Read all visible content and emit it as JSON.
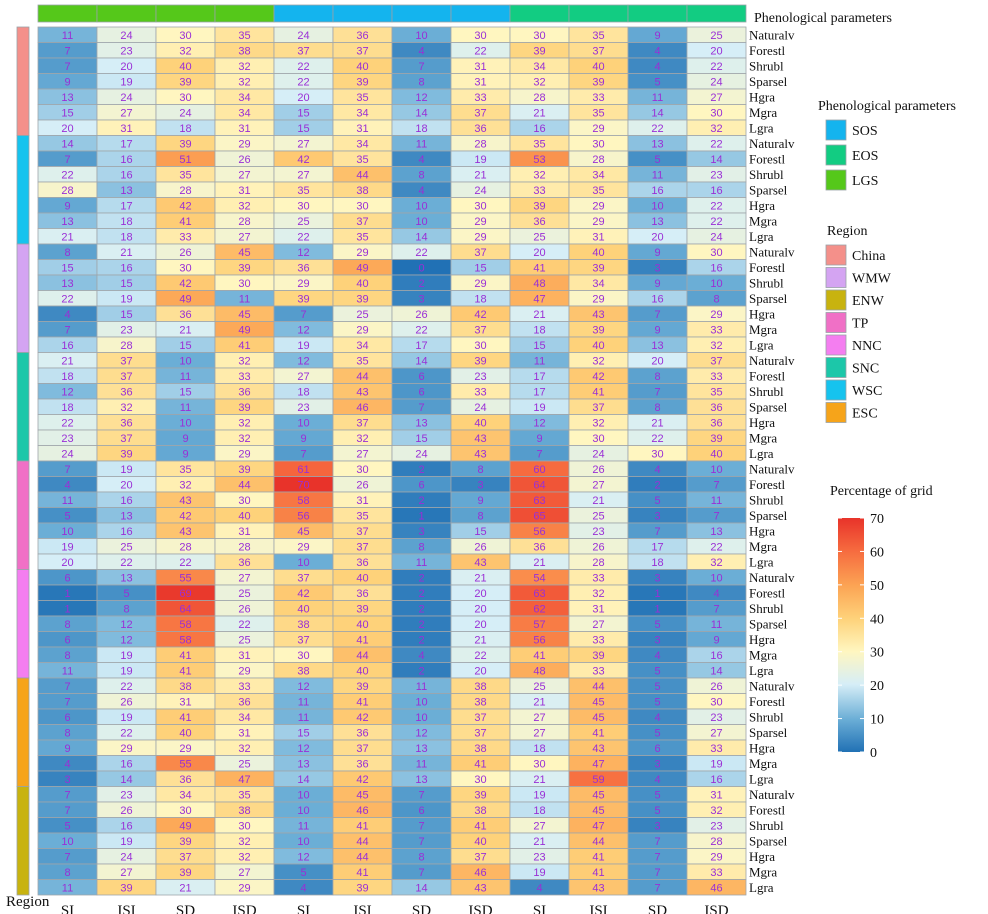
{
  "chart_data": {
    "type": "heatmap",
    "title": "",
    "columns": [
      "SI",
      "ISI",
      "SD",
      "ISD",
      "SI",
      "ISI",
      "SD",
      "ISD",
      "SI",
      "ISI",
      "SD",
      "ISD"
    ],
    "column_groups": [
      "LGS",
      "LGS",
      "LGS",
      "LGS",
      "SOS",
      "SOS",
      "SOS",
      "SOS",
      "EOS",
      "EOS",
      "EOS",
      "EOS"
    ],
    "row_labels": [
      "Naturalv",
      "Forestl",
      "Shrubl",
      "Sparsel",
      "Hgra",
      "Mgra",
      "Lgra"
    ],
    "x_axis_label": "Region",
    "top_bar_label": "Phenological parameters",
    "regions": [
      {
        "name": "China",
        "rows": [
          [
            11,
            24,
            30,
            35,
            24,
            36,
            10,
            30,
            30,
            35,
            9,
            25
          ],
          [
            7,
            23,
            32,
            38,
            37,
            37,
            4,
            22,
            39,
            37,
            4,
            20
          ],
          [
            7,
            20,
            40,
            32,
            22,
            40,
            7,
            31,
            34,
            40,
            4,
            22
          ],
          [
            9,
            19,
            39,
            32,
            22,
            39,
            8,
            31,
            32,
            39,
            5,
            24
          ],
          [
            13,
            24,
            30,
            34,
            20,
            35,
            12,
            33,
            28,
            33,
            11,
            27
          ],
          [
            15,
            27,
            24,
            34,
            15,
            34,
            14,
            37,
            21,
            35,
            14,
            30
          ],
          [
            20,
            31,
            18,
            31,
            15,
            31,
            18,
            36,
            16,
            29,
            22,
            32
          ]
        ]
      },
      {
        "name": "WSC",
        "rows": [
          [
            14,
            17,
            39,
            29,
            27,
            34,
            11,
            28,
            35,
            30,
            13,
            22
          ],
          [
            7,
            16,
            51,
            26,
            42,
            35,
            4,
            19,
            53,
            28,
            5,
            14
          ],
          [
            22,
            16,
            35,
            27,
            27,
            44,
            8,
            21,
            32,
            34,
            11,
            23
          ],
          [
            28,
            13,
            28,
            31,
            35,
            38,
            4,
            24,
            33,
            35,
            16,
            16
          ],
          [
            9,
            17,
            42,
            32,
            30,
            30,
            10,
            30,
            39,
            29,
            10,
            22
          ],
          [
            13,
            18,
            41,
            28,
            25,
            37,
            10,
            29,
            36,
            29,
            13,
            22
          ],
          [
            21,
            18,
            33,
            27,
            22,
            35,
            14,
            29,
            25,
            31,
            20,
            24
          ]
        ]
      },
      {
        "name": "WMW",
        "rows": [
          [
            8,
            21,
            26,
            45,
            12,
            29,
            22,
            37,
            20,
            40,
            9,
            30
          ],
          [
            15,
            16,
            30,
            39,
            36,
            49,
            0,
            15,
            41,
            39,
            3,
            16
          ],
          [
            13,
            15,
            42,
            30,
            29,
            40,
            2,
            29,
            48,
            34,
            9,
            10
          ],
          [
            22,
            19,
            49,
            11,
            39,
            39,
            3,
            18,
            47,
            29,
            16,
            8
          ],
          [
            4,
            15,
            36,
            45,
            7,
            25,
            26,
            42,
            21,
            43,
            7,
            29
          ],
          [
            7,
            23,
            21,
            49,
            12,
            29,
            22,
            37,
            18,
            39,
            9,
            33
          ],
          [
            16,
            28,
            15,
            41,
            19,
            34,
            17,
            30,
            15,
            40,
            13,
            32
          ]
        ]
      },
      {
        "name": "SNC",
        "rows": [
          [
            21,
            37,
            10,
            32,
            12,
            35,
            14,
            39,
            11,
            32,
            20,
            37
          ],
          [
            18,
            37,
            11,
            33,
            27,
            44,
            6,
            23,
            17,
            42,
            8,
            33
          ],
          [
            12,
            36,
            15,
            36,
            18,
            43,
            6,
            33,
            17,
            41,
            7,
            35
          ],
          [
            18,
            32,
            11,
            39,
            23,
            46,
            7,
            24,
            19,
            37,
            8,
            36
          ],
          [
            22,
            36,
            10,
            32,
            10,
            37,
            13,
            40,
            12,
            32,
            21,
            36
          ],
          [
            23,
            37,
            9,
            32,
            9,
            32,
            15,
            43,
            9,
            30,
            22,
            39
          ],
          [
            24,
            39,
            9,
            29,
            7,
            27,
            24,
            43,
            7,
            24,
            30,
            40
          ]
        ]
      },
      {
        "name": "TP",
        "rows": [
          [
            7,
            19,
            35,
            39,
            61,
            30,
            2,
            8,
            60,
            26,
            4,
            10
          ],
          [
            4,
            20,
            32,
            44,
            70,
            26,
            6,
            3,
            64,
            27,
            2,
            7
          ],
          [
            11,
            16,
            43,
            30,
            58,
            31,
            2,
            9,
            63,
            21,
            5,
            11
          ],
          [
            5,
            13,
            42,
            40,
            56,
            35,
            1,
            8,
            65,
            25,
            3,
            7
          ],
          [
            10,
            16,
            43,
            31,
            45,
            37,
            3,
            15,
            56,
            23,
            7,
            13
          ],
          [
            19,
            25,
            28,
            28,
            29,
            37,
            8,
            26,
            36,
            26,
            17,
            22
          ],
          [
            20,
            22,
            22,
            36,
            10,
            36,
            11,
            43,
            21,
            28,
            18,
            32
          ]
        ]
      },
      {
        "name": "NNC",
        "rows": [
          [
            6,
            13,
            55,
            27,
            37,
            40,
            2,
            21,
            54,
            33,
            3,
            10
          ],
          [
            1,
            5,
            69,
            25,
            42,
            36,
            2,
            20,
            63,
            32,
            1,
            4
          ],
          [
            1,
            8,
            64,
            26,
            40,
            39,
            2,
            20,
            62,
            31,
            1,
            7
          ],
          [
            8,
            12,
            58,
            22,
            38,
            40,
            2,
            20,
            57,
            27,
            5,
            11
          ],
          [
            6,
            12,
            58,
            25,
            37,
            41,
            2,
            21,
            56,
            33,
            3,
            9
          ],
          [
            8,
            19,
            41,
            31,
            30,
            44,
            4,
            22,
            41,
            39,
            4,
            16
          ],
          [
            11,
            19,
            41,
            29,
            38,
            40,
            2,
            20,
            48,
            33,
            5,
            14
          ]
        ]
      },
      {
        "name": "ESC",
        "rows": [
          [
            7,
            22,
            38,
            33,
            12,
            39,
            11,
            38,
            25,
            44,
            5,
            26
          ],
          [
            7,
            26,
            31,
            36,
            11,
            41,
            10,
            38,
            21,
            45,
            5,
            30
          ],
          [
            6,
            19,
            41,
            34,
            11,
            42,
            10,
            37,
            27,
            45,
            4,
            23
          ],
          [
            8,
            22,
            40,
            31,
            15,
            36,
            12,
            37,
            27,
            41,
            5,
            27
          ],
          [
            9,
            29,
            29,
            32,
            12,
            37,
            13,
            38,
            18,
            43,
            6,
            33
          ],
          [
            4,
            16,
            55,
            25,
            13,
            36,
            11,
            41,
            30,
            47,
            3,
            19
          ],
          [
            3,
            14,
            36,
            47,
            14,
            42,
            13,
            30,
            21,
            59,
            4,
            16
          ]
        ]
      },
      {
        "name": "ENW",
        "rows": [
          [
            7,
            23,
            34,
            35,
            10,
            45,
            7,
            39,
            19,
            45,
            5,
            31
          ],
          [
            7,
            26,
            30,
            38,
            10,
            46,
            6,
            38,
            18,
            45,
            5,
            32
          ],
          [
            5,
            16,
            49,
            30,
            11,
            41,
            7,
            41,
            27,
            47,
            3,
            23
          ],
          [
            10,
            19,
            39,
            32,
            10,
            44,
            7,
            40,
            21,
            44,
            7,
            28
          ],
          [
            7,
            24,
            37,
            32,
            12,
            44,
            8,
            37,
            23,
            41,
            7,
            29
          ],
          [
            8,
            27,
            39,
            27,
            5,
            41,
            7,
            46,
            19,
            41,
            7,
            33
          ],
          [
            11,
            39,
            21,
            29,
            4,
            39,
            14,
            43,
            4,
            43,
            7,
            46
          ]
        ]
      }
    ],
    "colorbar": {
      "title": "Percentage of grid",
      "min": 0,
      "max": 70,
      "ticks": [
        0,
        10,
        20,
        30,
        40,
        50,
        60,
        70
      ]
    },
    "legend_phenology": {
      "title": "Phenological parameters",
      "items": [
        {
          "label": "SOS",
          "color": "#14b4ee"
        },
        {
          "label": "EOS",
          "color": "#12cc82"
        },
        {
          "label": "LGS",
          "color": "#55c81a"
        }
      ]
    },
    "legend_region": {
      "title": "Region",
      "items": [
        {
          "label": "China",
          "color": "#f4908a"
        },
        {
          "label": "WMW",
          "color": "#d4a4f2"
        },
        {
          "label": "ENW",
          "color": "#c8b30f"
        },
        {
          "label": "TP",
          "color": "#f070c6"
        },
        {
          "label": "NNC",
          "color": "#f47ef0"
        },
        {
          "label": "SNC",
          "color": "#1cc7a9"
        },
        {
          "label": "WSC",
          "color": "#16c3ee"
        },
        {
          "label": "ESC",
          "color": "#f6a41a"
        }
      ]
    }
  }
}
